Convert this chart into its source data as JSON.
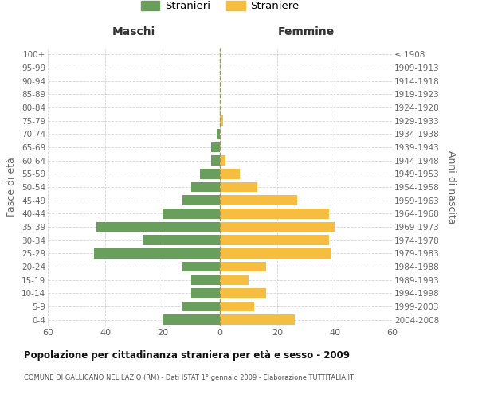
{
  "age_groups": [
    "0-4",
    "5-9",
    "10-14",
    "15-19",
    "20-24",
    "25-29",
    "30-34",
    "35-39",
    "40-44",
    "45-49",
    "50-54",
    "55-59",
    "60-64",
    "65-69",
    "70-74",
    "75-79",
    "80-84",
    "85-89",
    "90-94",
    "95-99",
    "100+"
  ],
  "birth_years": [
    "2004-2008",
    "1999-2003",
    "1994-1998",
    "1989-1993",
    "1984-1988",
    "1979-1983",
    "1974-1978",
    "1969-1973",
    "1964-1968",
    "1959-1963",
    "1954-1958",
    "1949-1953",
    "1944-1948",
    "1939-1943",
    "1934-1938",
    "1929-1933",
    "1924-1928",
    "1919-1923",
    "1914-1918",
    "1909-1913",
    "≤ 1908"
  ],
  "males": [
    20,
    13,
    10,
    10,
    13,
    44,
    27,
    43,
    20,
    13,
    10,
    7,
    3,
    3,
    1,
    0,
    0,
    0,
    0,
    0,
    0
  ],
  "females": [
    26,
    12,
    16,
    10,
    16,
    39,
    38,
    40,
    38,
    27,
    13,
    7,
    2,
    0,
    0,
    1,
    0,
    0,
    0,
    0,
    0
  ],
  "male_color": "#6a9e5d",
  "female_color": "#f5be41",
  "title": "Popolazione per cittadinanza straniera per età e sesso - 2009",
  "subtitle": "COMUNE DI GALLICANO NEL LAZIO (RM) - Dati ISTAT 1° gennaio 2009 - Elaborazione TUTTITALIA.IT",
  "xlabel_left": "Maschi",
  "xlabel_right": "Femmine",
  "ylabel_left": "Fasce di età",
  "ylabel_right": "Anni di nascita",
  "legend_male": "Stranieri",
  "legend_female": "Straniere",
  "xlim": 60,
  "background_color": "#ffffff",
  "grid_color": "#cccccc",
  "axis_label_color": "#666666",
  "tick_label_color": "#666666"
}
